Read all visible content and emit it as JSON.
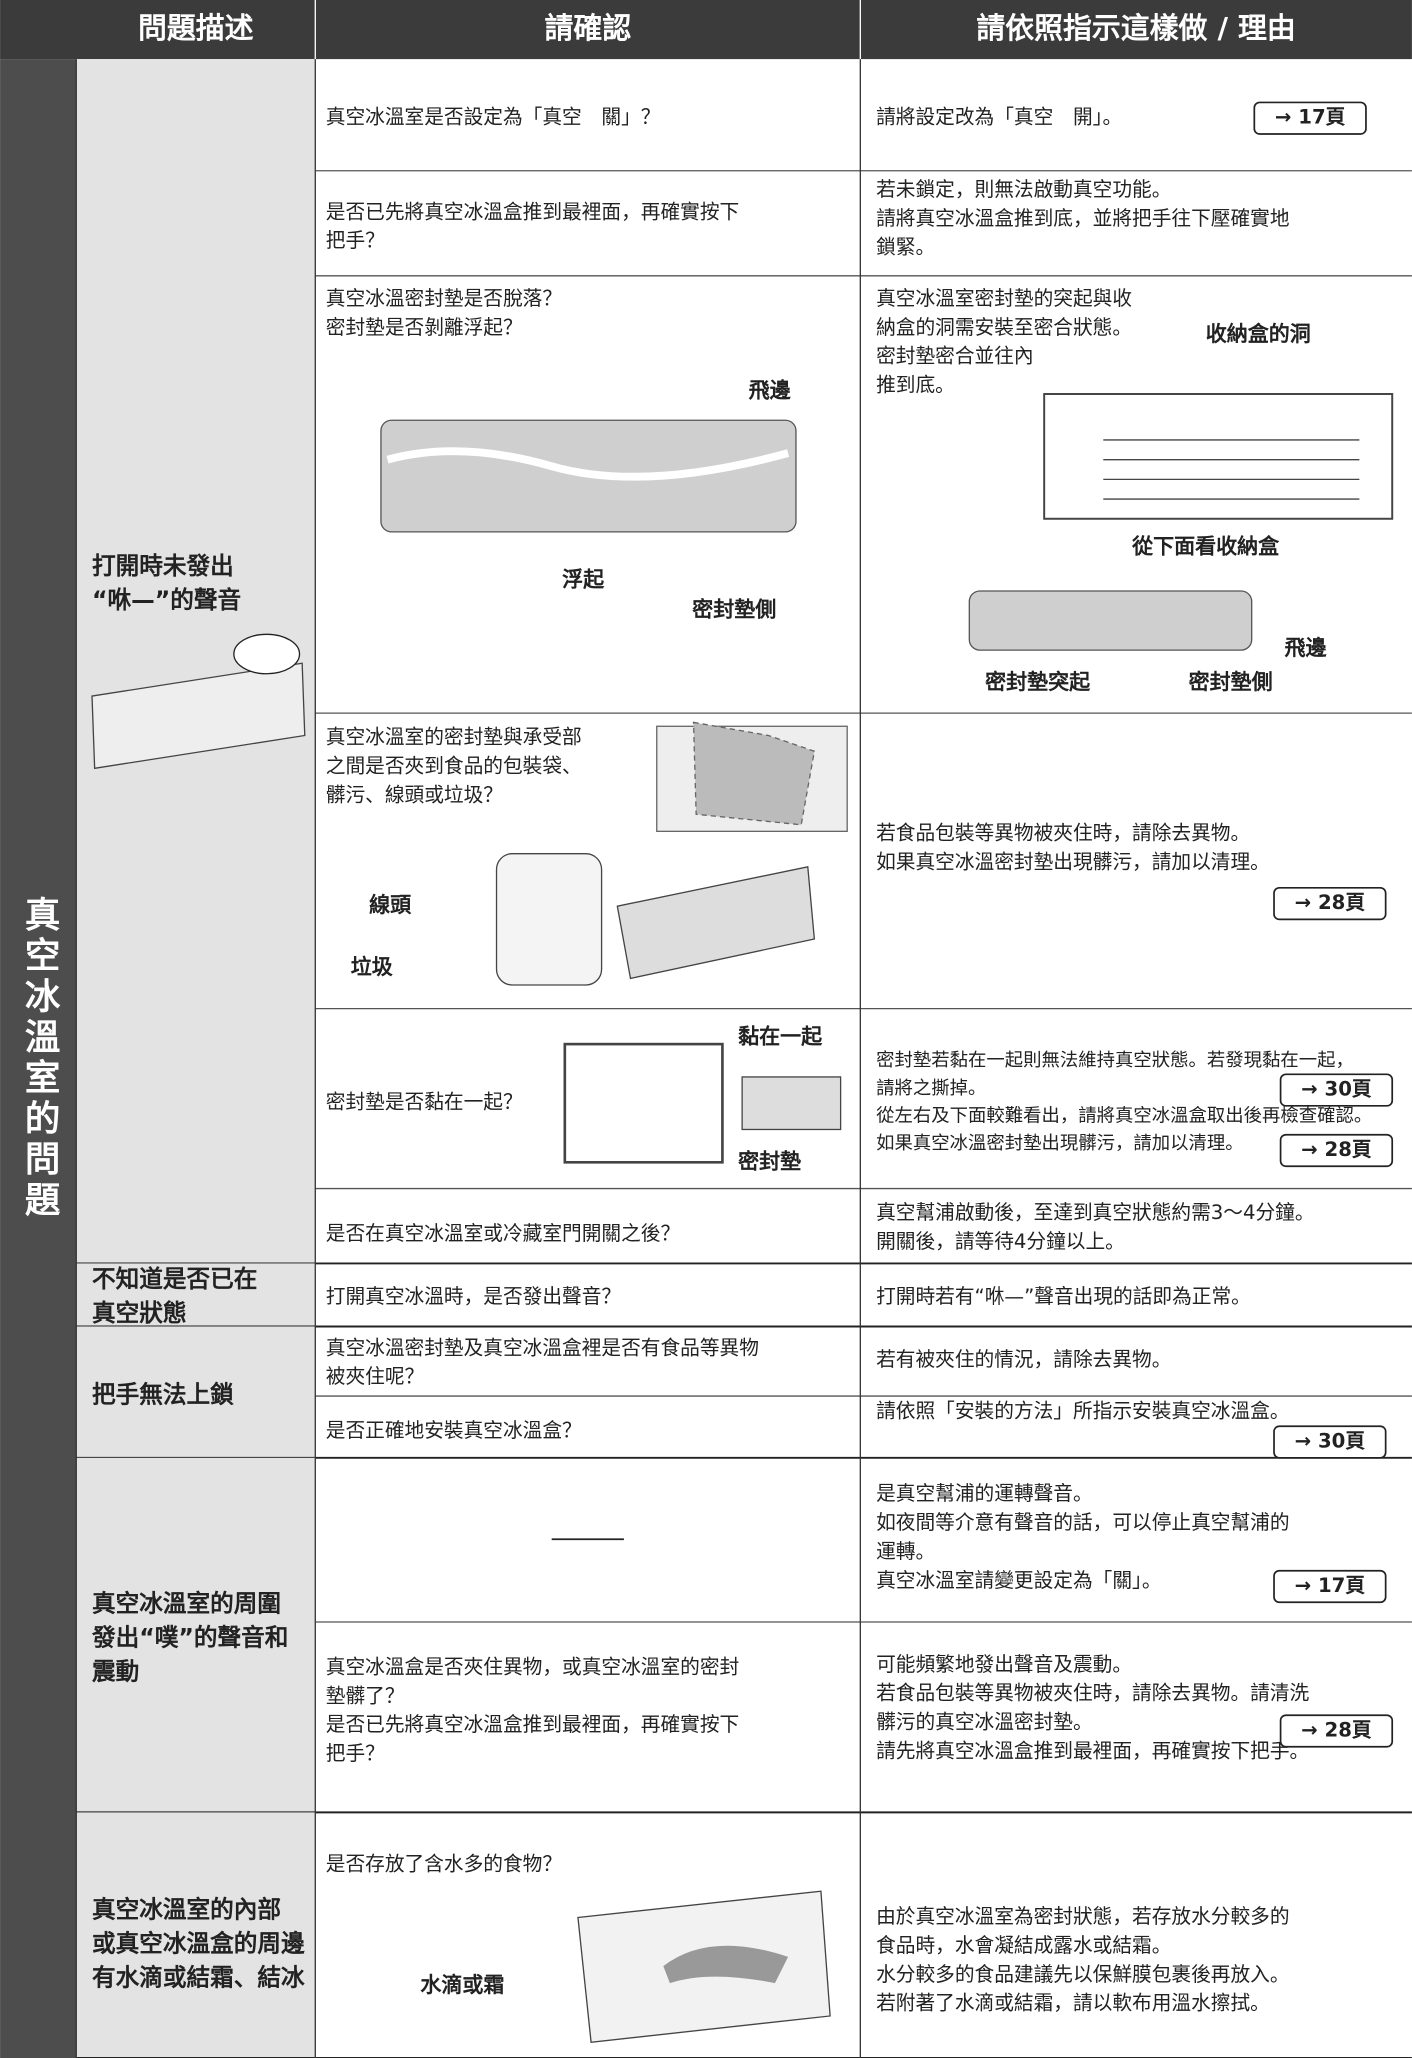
{
  "header": {
    "columns": [
      "問題描述",
      "請確認",
      "請依照指示這樣做 / 理由"
    ]
  },
  "side_label": "真空冰溫室的問題",
  "groups": [
    {
      "problem": [
        "打開時未發出",
        "“咻—”的聲音"
      ],
      "rows": [
        {
          "check": [
            "真空冰溫室是否設定為「真空　關」？"
          ],
          "action": [
            "請將設定改為「真空　開」。"
          ],
          "refs": [
            "→ 17頁"
          ]
        },
        {
          "check": [
            "是否已先將真空冰溫盒推到最裡面，再確實按下",
            "把手？"
          ],
          "action": [
            "若未鎖定，則無法啟動真空功能。",
            "請將真空冰溫盒推到底，並將把手往下壓確實地",
            "鎖緊。"
          ]
        },
        {
          "check": [
            "真空冰溫密封墊是否脫落？",
            "密封墊是否剝離浮起？"
          ],
          "check_figure": [
            "飛邊",
            "浮起",
            "密封墊側"
          ],
          "action": [
            "真空冰溫室密封墊的突起與收",
            "納盒的洞需安裝至密合狀態。",
            "密封墊密合並往內",
            "推到底。"
          ],
          "action_figure": [
            "收納盒的洞",
            "從下面看收納盒",
            "飛邊",
            "密封墊突起",
            "密封墊側"
          ]
        },
        {
          "check": [
            "真空冰溫室的密封墊與承受部",
            "之間是否夾到食品的包裝袋、",
            "髒污、線頭或垃圾？"
          ],
          "check_figure": [
            "線頭",
            "垃圾"
          ],
          "action": [
            "若食品包裝等異物被夾住時，請除去異物。",
            "如果真空冰溫密封墊出現髒污，請加以清理。"
          ],
          "refs": [
            "→ 28頁"
          ]
        },
        {
          "check": [
            "密封墊是否黏在一起？"
          ],
          "check_figure": [
            "黏在一起",
            "密封墊"
          ],
          "action": [
            "密封墊若黏在一起則無法維持真空狀態。若發現黏在一起，",
            "請將之撕掉。",
            "從左右及下面較難看出，請將真空冰溫盒取出後再檢查確認。",
            "如果真空冰溫密封墊出現髒污，請加以清理。"
          ],
          "refs": [
            "→ 30頁",
            "→ 28頁"
          ]
        },
        {
          "check": [
            "是否在真空冰溫室或冷藏室門開關之後？"
          ],
          "action": [
            "真空幫浦啟動後，至達到真空狀態約需3～4分鐘。",
            "開關後，請等待4分鐘以上。"
          ]
        }
      ]
    },
    {
      "problem": [
        "不知道是否已在",
        "真空狀態"
      ],
      "rows": [
        {
          "check": [
            "打開真空冰溫時，是否發出聲音？"
          ],
          "action": [
            "打開時若有“咻—”聲音出現的話即為正常。"
          ]
        }
      ]
    },
    {
      "problem": [
        "把手無法上鎖"
      ],
      "rows": [
        {
          "check": [
            "真空冰溫密封墊及真空冰溫盒裡是否有食品等異物",
            "被夾住呢？"
          ],
          "action": [
            "若有被夾住的情況，請除去異物。"
          ]
        },
        {
          "check": [
            "是否正確地安裝真空冰溫盒？"
          ],
          "action": [
            "請依照「安裝的方法」所指示安裝真空冰溫盒。"
          ],
          "refs": [
            "→ 30頁"
          ]
        }
      ]
    },
    {
      "problem": [
        "真空冰溫室的周圍",
        "發出“噗”的聲音和",
        "震動"
      ],
      "rows": [
        {
          "check": [],
          "action": [
            "是真空幫浦的運轉聲音。",
            "如夜間等介意有聲音的話，可以停止真空幫浦的",
            "運轉。",
            "真空冰溫室請變更設定為「關」。"
          ],
          "refs": [
            "→ 17頁"
          ]
        },
        {
          "check": [
            "真空冰溫盒是否夾住異物，或真空冰溫室的密封",
            "墊髒了？",
            "是否已先將真空冰溫盒推到最裡面，再確實按下",
            "把手？"
          ],
          "action": [
            "可能頻繁地發出聲音及震動。",
            "若食品包裝等異物被夾住時，請除去異物。請清洗",
            "髒污的真空冰溫密封墊。",
            "請先將真空冰溫盒推到最裡面，再確實按下把手。"
          ],
          "refs": [
            "→ 28頁"
          ]
        }
      ]
    },
    {
      "problem": [
        "真空冰溫室的內部",
        "或真空冰溫盒的周邊",
        "有水滴或結霜、結冰"
      ],
      "rows": [
        {
          "check": [
            "是否存放了含水多的食物？"
          ],
          "check_figure": [
            "水滴或霜"
          ],
          "action": [
            "由於真空冰溫室為密封狀態，若存放水分較多的",
            "食品時，水會凝結成露水或結霜。",
            "水分較多的食品建議先以保鮮膜包裹後再放入。",
            "若附著了水滴或結霜，請以軟布用溫水擦拭。"
          ]
        }
      ]
    }
  ]
}
